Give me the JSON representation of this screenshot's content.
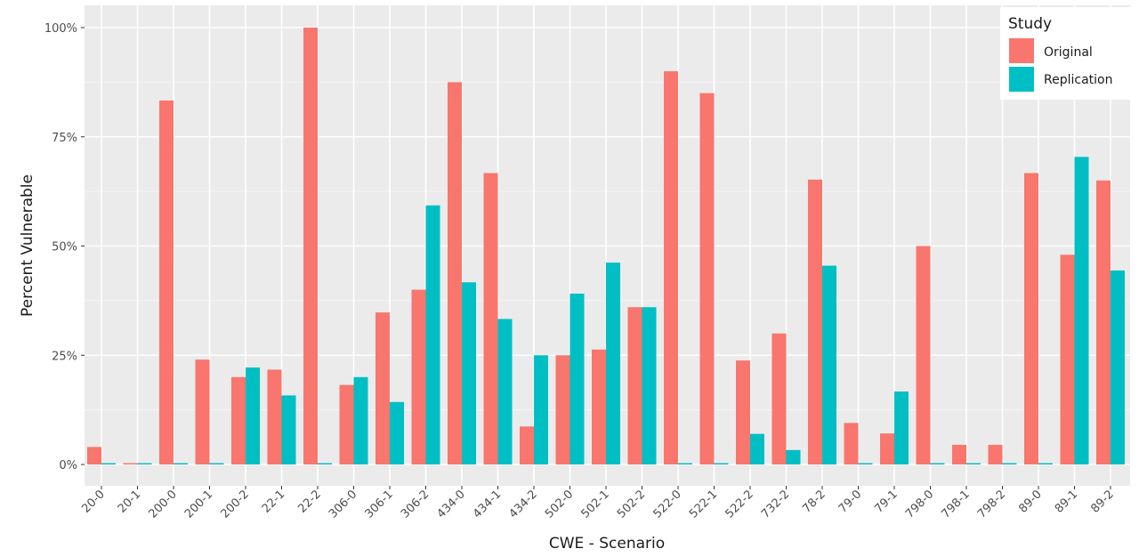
{
  "chart_data": {
    "type": "bar",
    "xlabel": "CWE - Scenario",
    "ylabel": "Percent Vulnerable",
    "ylim": [
      0,
      100
    ],
    "yticks": [
      0,
      25,
      50,
      75,
      100
    ],
    "ytick_labels": [
      "0%",
      "25%",
      "50%",
      "75%",
      "100%"
    ],
    "grid": true,
    "legend": {
      "title": "Study",
      "position": "top-right"
    },
    "categories": [
      "20-0",
      "20-1",
      "200-0",
      "200-1",
      "200-2",
      "22-1",
      "22-2",
      "306-0",
      "306-1",
      "306-2",
      "434-0",
      "434-1",
      "434-2",
      "502-0",
      "502-1",
      "502-2",
      "522-0",
      "522-1",
      "522-2",
      "732-2",
      "78-2",
      "79-0",
      "79-1",
      "798-0",
      "798-1",
      "798-2",
      "89-0",
      "89-1",
      "89-2"
    ],
    "series": [
      {
        "name": "Original",
        "color": "#F8766D",
        "values": [
          4,
          0.3,
          83.3,
          24,
          20,
          21.7,
          100,
          18.2,
          34.8,
          40,
          87.5,
          66.7,
          8.7,
          25,
          26.3,
          36,
          90,
          85,
          23.8,
          30,
          65.2,
          9.5,
          7.1,
          50,
          4.5,
          4.5,
          66.7,
          48,
          65
        ]
      },
      {
        "name": "Replication",
        "color": "#00BFC4",
        "values": [
          0.3,
          0.3,
          0.3,
          0.3,
          22.2,
          15.8,
          0.3,
          20,
          14.3,
          59.3,
          41.7,
          33.3,
          25,
          39.1,
          46.2,
          36,
          0.3,
          0.3,
          7,
          3.3,
          45.5,
          0.3,
          16.7,
          0.3,
          0.3,
          0.3,
          0.3,
          70.4,
          44.4
        ]
      }
    ]
  }
}
